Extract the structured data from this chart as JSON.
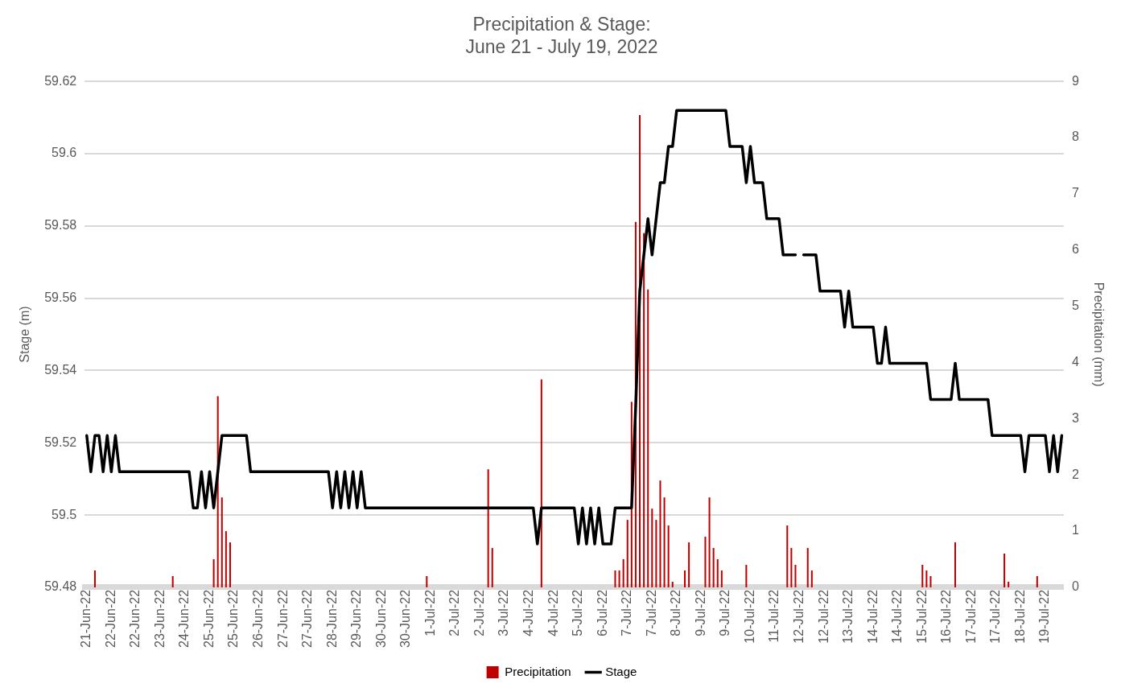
{
  "chart_data": {
    "type": "bar",
    "title": "Precipitation & Stage:\nJune 21 - July 19, 2022",
    "ylabel": "Stage (m)",
    "y2label": "Precipitation (mm)",
    "categories": [
      "21-Jun-22",
      null,
      null,
      null,
      null,
      null,
      "22-Jun-22",
      null,
      null,
      null,
      null,
      null,
      "22-Jun-22",
      null,
      null,
      null,
      null,
      null,
      "23-Jun-22",
      null,
      null,
      null,
      null,
      null,
      "24-Jun-22",
      null,
      null,
      null,
      null,
      null,
      "25-Jun-22",
      null,
      null,
      null,
      null,
      null,
      "25-Jun-22",
      null,
      null,
      null,
      null,
      null,
      "26-Jun-22",
      null,
      null,
      null,
      null,
      null,
      "27-Jun-22",
      null,
      null,
      null,
      null,
      null,
      "27-Jun-22",
      null,
      null,
      null,
      null,
      null,
      "28-Jun-22",
      null,
      null,
      null,
      null,
      null,
      "29-Jun-22",
      null,
      null,
      null,
      null,
      null,
      "30-Jun-22",
      null,
      null,
      null,
      null,
      null,
      "30-Jun-22",
      null,
      null,
      null,
      null,
      null,
      "1-Jul-22",
      null,
      null,
      null,
      null,
      null,
      "2-Jul-22",
      null,
      null,
      null,
      null,
      null,
      "2-Jul-22",
      null,
      null,
      null,
      null,
      null,
      "3-Jul-22",
      null,
      null,
      null,
      null,
      null,
      "4-Jul-22",
      null,
      null,
      null,
      null,
      null,
      "4-Jul-22",
      null,
      null,
      null,
      null,
      null,
      "5-Jul-22",
      null,
      null,
      null,
      null,
      null,
      "6-Jul-22",
      null,
      null,
      null,
      null,
      null,
      "7-Jul-22",
      null,
      null,
      null,
      null,
      null,
      "7-Jul-22",
      null,
      null,
      null,
      null,
      null,
      "8-Jul-22",
      null,
      null,
      null,
      null,
      null,
      "9-Jul-22",
      null,
      null,
      null,
      null,
      null,
      "9-Jul-22",
      null,
      null,
      null,
      null,
      null,
      "10-Jul-22",
      null,
      null,
      null,
      null,
      null,
      "11-Jul-22",
      null,
      null,
      null,
      null,
      null,
      "12-Jul-22",
      null,
      null,
      null,
      null,
      null,
      "12-Jul-22",
      null,
      null,
      null,
      null,
      null,
      "13-Jul-22",
      null,
      null,
      null,
      null,
      null,
      "14-Jul-22",
      null,
      null,
      null,
      null,
      null,
      "14-Jul-22",
      null,
      null,
      null,
      null,
      null,
      "15-Jul-22",
      null,
      null,
      null,
      null,
      null,
      "16-Jul-22",
      null,
      null,
      null,
      null,
      null,
      "17-Jul-22",
      null,
      null,
      null,
      null,
      null,
      "17-Jul-22",
      null,
      null,
      null,
      null,
      null,
      "18-Jul-22",
      null,
      null,
      null,
      null,
      null,
      "19-Jul-22",
      null,
      null,
      null,
      null
    ],
    "series": [
      {
        "name": "Precipitation",
        "axis": "y2",
        "color": "#c00000",
        "values": [
          0,
          0,
          0.3,
          0,
          0,
          0,
          0,
          0,
          0,
          0,
          0,
          0,
          0,
          0,
          0,
          0,
          0,
          0,
          0,
          0,
          0,
          0.2,
          0,
          0,
          0,
          0,
          0,
          0,
          0,
          0,
          0,
          0.5,
          3.4,
          1.6,
          1.0,
          0.8,
          0,
          0,
          0,
          0,
          0,
          0,
          0,
          0,
          0,
          0,
          0,
          0,
          0,
          0,
          0,
          0,
          0,
          0,
          0,
          0,
          0,
          0,
          0,
          0,
          0,
          0,
          0,
          0,
          0,
          0,
          0,
          0,
          0,
          0,
          0,
          0,
          0,
          0,
          0,
          0,
          0,
          0,
          0,
          0,
          0,
          0,
          0,
          0.2,
          0,
          0,
          0,
          0,
          0,
          0,
          0,
          0,
          0,
          0,
          0,
          0,
          0,
          0,
          2.1,
          0.7,
          0,
          0,
          0,
          0,
          0,
          0,
          0,
          0,
          0,
          0,
          0,
          3.7,
          0,
          0,
          0,
          0,
          0,
          0,
          0,
          0,
          0,
          0,
          0,
          0,
          0,
          0,
          0,
          0,
          0,
          0.3,
          0.3,
          0.5,
          1.2,
          3.3,
          6.5,
          8.4,
          6.3,
          5.3,
          1.4,
          1.2,
          1.9,
          1.6,
          1.1,
          0.1,
          0,
          0,
          0.3,
          0.8,
          0,
          0,
          0,
          0.9,
          1.6,
          0.7,
          0.5,
          0.3,
          0,
          0,
          0,
          0,
          0,
          0.4,
          0,
          0,
          0,
          0,
          0,
          0,
          0,
          0,
          0,
          1.1,
          0.7,
          0.4,
          0,
          0,
          0.7,
          0.3,
          0,
          0,
          0,
          0,
          0,
          0,
          0,
          0,
          0,
          0,
          0,
          0,
          0,
          0,
          0,
          0,
          0,
          0,
          0,
          0,
          0,
          0,
          0,
          0,
          0,
          0,
          0.4,
          0.3,
          0.2,
          0,
          0,
          0,
          0,
          0,
          0.8,
          0,
          0,
          0,
          0,
          0,
          0,
          0,
          0,
          0,
          0,
          0,
          0.6,
          0.1,
          0,
          0,
          0,
          0,
          0,
          0,
          0.2,
          0,
          0,
          0,
          0,
          0,
          0
        ]
      },
      {
        "name": "Stage",
        "type": "line",
        "color": "#000000",
        "values": [
          59.522,
          59.512,
          59.522,
          59.522,
          59.512,
          59.522,
          59.512,
          59.522,
          59.512,
          59.512,
          59.512,
          59.512,
          59.512,
          59.512,
          59.512,
          59.512,
          59.512,
          59.512,
          59.512,
          59.512,
          59.512,
          59.512,
          59.512,
          59.512,
          59.512,
          59.512,
          59.502,
          59.502,
          59.512,
          59.502,
          59.512,
          59.502,
          59.512,
          59.522,
          59.522,
          59.522,
          59.522,
          59.522,
          59.522,
          59.522,
          59.512,
          59.512,
          59.512,
          59.512,
          59.512,
          59.512,
          59.512,
          59.512,
          59.512,
          59.512,
          59.512,
          59.512,
          59.512,
          59.512,
          59.512,
          59.512,
          59.512,
          59.512,
          59.512,
          59.512,
          59.502,
          59.512,
          59.502,
          59.512,
          59.502,
          59.512,
          59.502,
          59.512,
          59.502,
          59.502,
          59.502,
          59.502,
          59.502,
          59.502,
          59.502,
          59.502,
          59.502,
          59.502,
          59.502,
          59.502,
          59.502,
          59.502,
          59.502,
          59.502,
          59.502,
          59.502,
          59.502,
          59.502,
          59.502,
          59.502,
          59.502,
          59.502,
          59.502,
          59.502,
          59.502,
          59.502,
          59.502,
          59.502,
          59.502,
          59.502,
          59.502,
          59.502,
          59.502,
          59.502,
          59.502,
          59.502,
          59.502,
          59.502,
          59.502,
          59.502,
          59.492,
          59.502,
          59.502,
          59.502,
          59.502,
          59.502,
          59.502,
          59.502,
          59.502,
          59.502,
          59.492,
          59.502,
          59.492,
          59.502,
          59.492,
          59.502,
          59.492,
          59.492,
          59.492,
          59.502,
          59.502,
          59.502,
          59.502,
          59.502,
          59.53,
          59.562,
          59.572,
          59.582,
          59.572,
          59.582,
          59.592,
          59.592,
          59.602,
          59.602,
          59.612,
          59.612,
          59.612,
          59.612,
          59.612,
          59.612,
          59.612,
          59.612,
          59.612,
          59.612,
          59.612,
          59.612,
          59.612,
          59.602,
          59.602,
          59.602,
          59.602,
          59.592,
          59.602,
          59.592,
          59.592,
          59.592,
          59.582,
          59.582,
          59.582,
          59.582,
          59.572,
          59.572,
          59.572,
          59.572,
          null,
          59.572,
          59.572,
          59.572,
          59.572,
          59.562,
          59.562,
          59.562,
          59.562,
          59.562,
          59.562,
          59.552,
          59.562,
          59.552,
          59.552,
          59.552,
          59.552,
          59.552,
          59.552,
          59.542,
          59.542,
          59.552,
          59.542,
          59.542,
          59.542,
          59.542,
          59.542,
          59.542,
          59.542,
          59.542,
          59.542,
          59.542,
          59.532,
          59.532,
          59.532,
          59.532,
          59.532,
          59.532,
          59.542,
          59.532,
          59.532,
          59.532,
          59.532,
          59.532,
          59.532,
          59.532,
          59.532,
          59.522,
          59.522,
          59.522,
          59.522,
          59.522,
          59.522,
          59.522,
          59.522,
          59.512,
          59.522,
          59.522,
          59.522,
          59.522,
          59.522,
          59.512,
          59.522,
          59.512,
          59.522
        ]
      }
    ],
    "ylim": [
      59.48,
      59.62
    ],
    "yticks": [
      59.48,
      59.5,
      59.52,
      59.54,
      59.56,
      59.58,
      59.6,
      59.62
    ],
    "y2lim": [
      0,
      9
    ],
    "y2ticks": [
      0,
      1,
      2,
      3,
      4,
      5,
      6,
      7,
      8,
      9
    ],
    "grid": "y",
    "legend": "bottom",
    "marker": "none",
    "line_style": "solid"
  }
}
